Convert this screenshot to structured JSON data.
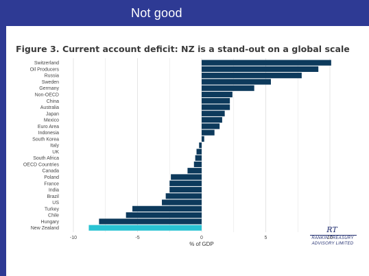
{
  "slide": {
    "title": "Not good"
  },
  "logo": {
    "mark": "RT",
    "line1": "RANKIN TREASURY",
    "line2": "ADVISORY LIMITED"
  },
  "chart_data": {
    "type": "bar",
    "orientation": "horizontal",
    "title": "Figure 3. Current account deficit: NZ is a stand-out on a global scale",
    "xlabel": "% of GDP",
    "ylabel": "",
    "xlim": [
      -10.5,
      11
    ],
    "xticks": [
      -10,
      -5,
      0,
      5,
      10
    ],
    "grid": true,
    "categories": [
      "Switzerland",
      "Oil Producers",
      "Russia",
      "Sweden",
      "Germany",
      "Non-OECD",
      "China",
      "Australia",
      "Japan",
      "Mexico",
      "Euro Area",
      "Indonesia",
      "South Korea",
      "Italy",
      "UK",
      "South Africa",
      "OECD Countries",
      "Canada",
      "Poland",
      "France",
      "India",
      "Brazil",
      "US",
      "Turkey",
      "Chile",
      "Hungary",
      "New Zealand"
    ],
    "values": [
      10.1,
      9.1,
      7.8,
      5.4,
      4.1,
      2.4,
      2.2,
      2.2,
      1.8,
      1.6,
      1.4,
      1.0,
      0.2,
      -0.2,
      -0.4,
      -0.5,
      -0.6,
      -1.1,
      -2.4,
      -2.5,
      -2.5,
      -2.8,
      -3.1,
      -5.4,
      -5.9,
      -8.0,
      -8.8
    ],
    "colors": {
      "default": "#0d3a5c",
      "highlight": "#29c3d3",
      "highlight_category": "New Zealand",
      "grid": "#e4e4e4",
      "text": "#444444"
    }
  }
}
